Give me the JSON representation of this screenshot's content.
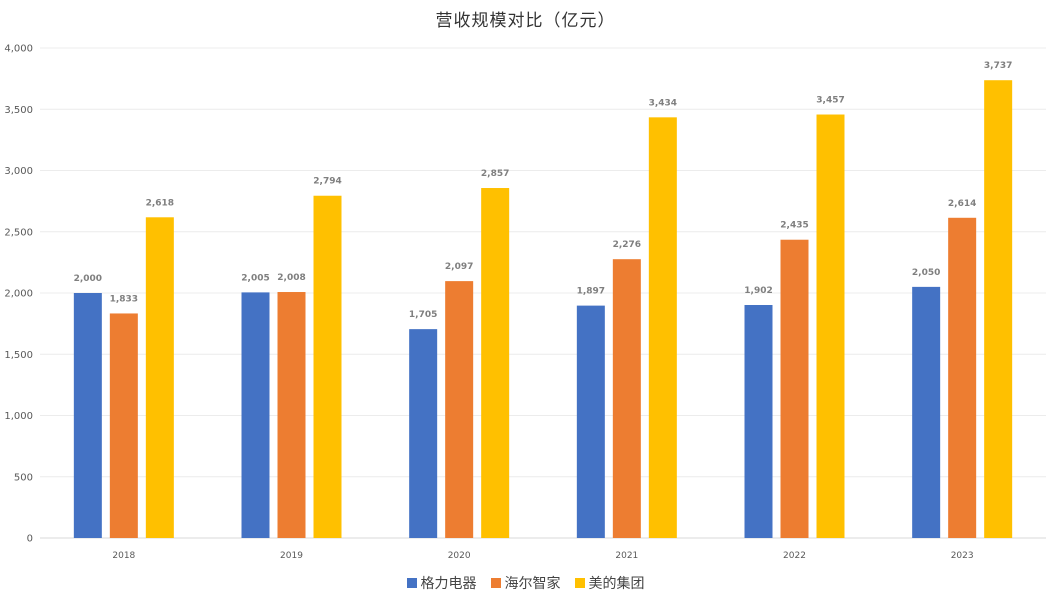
{
  "chart_data": {
    "type": "bar",
    "title": "营收规模对比（亿元）",
    "categories": [
      "2018",
      "2019",
      "2020",
      "2021",
      "2022",
      "2023"
    ],
    "series": [
      {
        "name": "格力电器",
        "color": "#4472c4",
        "values": [
          2000,
          2005,
          1705,
          1897,
          1902,
          2050
        ],
        "labels": [
          "2,000",
          "2,005",
          "1,705",
          "1,897",
          "1,902",
          "2,050"
        ]
      },
      {
        "name": "海尔智家",
        "color": "#ed7d31",
        "values": [
          1833,
          2008,
          2097,
          2276,
          2435,
          2614
        ],
        "labels": [
          "1,833",
          "2,008",
          "2,097",
          "2,276",
          "2,435",
          "2,614"
        ]
      },
      {
        "name": "美的集团",
        "color": "#ffc000",
        "values": [
          2618,
          2794,
          2857,
          3434,
          3457,
          3737
        ],
        "labels": [
          "2,618",
          "2,794",
          "2,857",
          "3,434",
          "3,457",
          "3,737"
        ]
      }
    ],
    "ylim": [
      0,
      4000
    ],
    "yticks": [
      0,
      500,
      1000,
      1500,
      2000,
      2500,
      3000,
      3500,
      4000
    ],
    "ytick_labels": [
      "0",
      "500",
      "1,000",
      "1,500",
      "2,000",
      "2,500",
      "3,000",
      "3,500",
      "4,000"
    ],
    "xlabel": "",
    "ylabel": "",
    "grid": true,
    "legend_position": "bottom"
  }
}
